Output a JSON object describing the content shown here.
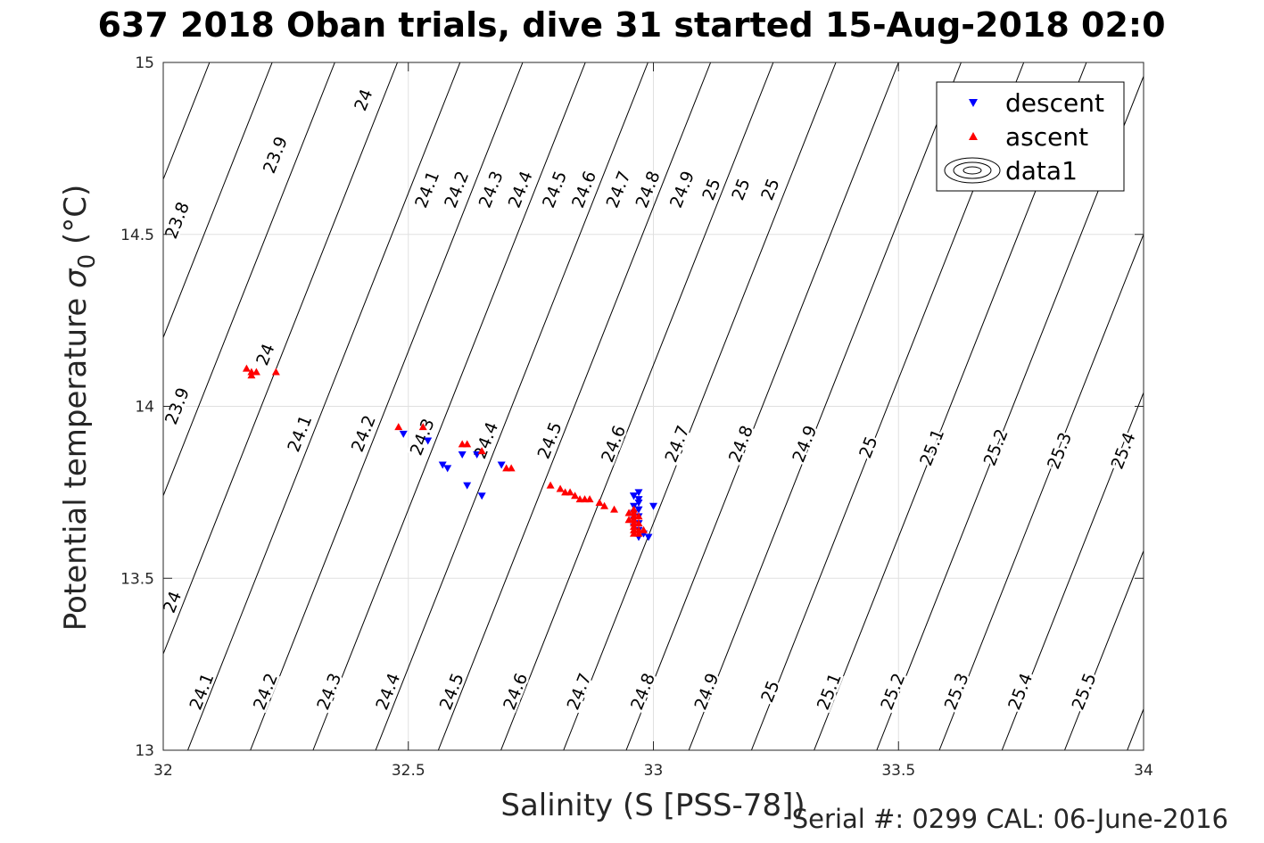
{
  "title": "637 2018 Oban trials, dive 31 started 15-Aug-2018 02:0",
  "footnote": "Serial #: 0299 CAL: 06-June-2016",
  "colors": {
    "descent": "#0000ff",
    "ascent": "#ff0000",
    "contour": "#000000",
    "grid": "#e0e0e0"
  },
  "chart_data": {
    "type": "scatter",
    "xlabel": "Salinity (S [PSS-78])",
    "ylabel_main": "Potential temperature ",
    "ylabel_sigma": "σ",
    "ylabel_sub": "0",
    "ylabel_unit": " (°C)",
    "xlim": [
      32,
      34
    ],
    "ylim": [
      13,
      15
    ],
    "xticks": [
      32,
      32.5,
      33,
      33.5,
      34
    ],
    "xtick_labels": [
      "32",
      "32.5",
      "33",
      "33.5",
      "34"
    ],
    "yticks": [
      13,
      13.5,
      14,
      14.5,
      15
    ],
    "ytick_labels": [
      "13",
      "13.5",
      "14",
      "14.5",
      "15"
    ],
    "grid": true,
    "legend_position": "top-right",
    "legend": [
      "descent",
      "ascent",
      "data1"
    ],
    "series": [
      {
        "name": "descent",
        "marker": "triangle-down",
        "color": "#0000ff",
        "points": [
          [
            32.49,
            13.92
          ],
          [
            32.54,
            13.9
          ],
          [
            32.57,
            13.83
          ],
          [
            32.58,
            13.82
          ],
          [
            32.61,
            13.86
          ],
          [
            32.62,
            13.77
          ],
          [
            32.64,
            13.86
          ],
          [
            32.65,
            13.74
          ],
          [
            32.69,
            13.83
          ],
          [
            32.96,
            13.74
          ],
          [
            32.97,
            13.73
          ],
          [
            32.97,
            13.72
          ],
          [
            32.96,
            13.71
          ],
          [
            32.97,
            13.7
          ],
          [
            32.96,
            13.69
          ],
          [
            32.97,
            13.68
          ],
          [
            32.96,
            13.67
          ],
          [
            32.97,
            13.66
          ],
          [
            32.96,
            13.65
          ],
          [
            32.97,
            13.64
          ],
          [
            32.98,
            13.63
          ],
          [
            32.99,
            13.62
          ],
          [
            33.0,
            13.71
          ],
          [
            32.97,
            13.62
          ],
          [
            32.96,
            13.74
          ],
          [
            32.97,
            13.75
          ]
        ]
      },
      {
        "name": "ascent",
        "marker": "triangle-up",
        "color": "#ff0000",
        "points": [
          [
            32.17,
            14.11
          ],
          [
            32.18,
            14.1
          ],
          [
            32.18,
            14.09
          ],
          [
            32.19,
            14.1
          ],
          [
            32.23,
            14.1
          ],
          [
            32.48,
            13.94
          ],
          [
            32.53,
            13.94
          ],
          [
            32.61,
            13.89
          ],
          [
            32.62,
            13.89
          ],
          [
            32.65,
            13.87
          ],
          [
            32.7,
            13.82
          ],
          [
            32.71,
            13.82
          ],
          [
            32.79,
            13.77
          ],
          [
            32.81,
            13.76
          ],
          [
            32.82,
            13.75
          ],
          [
            32.83,
            13.75
          ],
          [
            32.84,
            13.74
          ],
          [
            32.85,
            13.73
          ],
          [
            32.86,
            13.73
          ],
          [
            32.87,
            13.73
          ],
          [
            32.89,
            13.72
          ],
          [
            32.9,
            13.71
          ],
          [
            32.92,
            13.7
          ],
          [
            32.95,
            13.69
          ],
          [
            32.96,
            13.68
          ],
          [
            32.95,
            13.67
          ],
          [
            32.96,
            13.66
          ],
          [
            32.96,
            13.65
          ],
          [
            32.96,
            13.64
          ],
          [
            32.97,
            13.64
          ],
          [
            32.97,
            13.63
          ],
          [
            32.96,
            13.69
          ],
          [
            32.96,
            13.67
          ],
          [
            32.97,
            13.66
          ],
          [
            32.96,
            13.7
          ],
          [
            32.97,
            13.68
          ],
          [
            32.96,
            13.63
          ],
          [
            32.98,
            13.64
          ]
        ]
      }
    ],
    "contour_levels": [
      23.8,
      23.9,
      24,
      24.1,
      24.2,
      24.3,
      24.4,
      24.5,
      24.6,
      24.7,
      24.8,
      24.9,
      25,
      25.1,
      25.2,
      25.3,
      25.4,
      25.5
    ],
    "contour_labels": [
      {
        "text": "24",
        "x": 32.41,
        "y": 14.89
      },
      {
        "text": "23.9",
        "x": 32.23,
        "y": 14.73
      },
      {
        "text": "23.8",
        "x": 32.03,
        "y": 14.54
      },
      {
        "text": "24.1",
        "x": 32.54,
        "y": 14.63
      },
      {
        "text": "24.2",
        "x": 32.6,
        "y": 14.63
      },
      {
        "text": "24.3",
        "x": 32.67,
        "y": 14.63
      },
      {
        "text": "24.4",
        "x": 32.73,
        "y": 14.63
      },
      {
        "text": "24.5",
        "x": 32.8,
        "y": 14.63
      },
      {
        "text": "24.6",
        "x": 32.86,
        "y": 14.63
      },
      {
        "text": "24.7",
        "x": 32.93,
        "y": 14.63
      },
      {
        "text": "24.8",
        "x": 32.99,
        "y": 14.63
      },
      {
        "text": "24.9",
        "x": 33.06,
        "y": 14.63
      },
      {
        "text": "25",
        "x": 33.12,
        "y": 14.63
      },
      {
        "text": "25",
        "x": 33.18,
        "y": 14.63
      },
      {
        "text": "25",
        "x": 33.24,
        "y": 14.63
      },
      {
        "text": "24",
        "x": 32.21,
        "y": 14.15
      },
      {
        "text": "23.9",
        "x": 32.03,
        "y": 14.0
      },
      {
        "text": "24.1",
        "x": 32.28,
        "y": 13.92
      },
      {
        "text": "24.2",
        "x": 32.41,
        "y": 13.92
      },
      {
        "text": "24.3",
        "x": 32.53,
        "y": 13.91
      },
      {
        "text": "24.4",
        "x": 32.66,
        "y": 13.9
      },
      {
        "text": "24.5",
        "x": 32.79,
        "y": 13.9
      },
      {
        "text": "24.6",
        "x": 32.92,
        "y": 13.89
      },
      {
        "text": "24.7",
        "x": 33.05,
        "y": 13.89
      },
      {
        "text": "24.8",
        "x": 33.18,
        "y": 13.89
      },
      {
        "text": "24.9",
        "x": 33.31,
        "y": 13.89
      },
      {
        "text": "25",
        "x": 33.44,
        "y": 13.88
      },
      {
        "text": "25.1",
        "x": 33.57,
        "y": 13.88
      },
      {
        "text": "25.2",
        "x": 33.7,
        "y": 13.88
      },
      {
        "text": "25.3",
        "x": 33.83,
        "y": 13.87
      },
      {
        "text": "25.4",
        "x": 33.96,
        "y": 13.87
      },
      {
        "text": "24",
        "x": 32.02,
        "y": 13.43
      },
      {
        "text": "24.1",
        "x": 32.08,
        "y": 13.17
      },
      {
        "text": "24.2",
        "x": 32.21,
        "y": 13.17
      },
      {
        "text": "24.3",
        "x": 32.34,
        "y": 13.17
      },
      {
        "text": "24.4",
        "x": 32.46,
        "y": 13.17
      },
      {
        "text": "24.5",
        "x": 32.59,
        "y": 13.17
      },
      {
        "text": "24.6",
        "x": 32.72,
        "y": 13.17
      },
      {
        "text": "24.7",
        "x": 32.85,
        "y": 13.17
      },
      {
        "text": "24.8",
        "x": 32.98,
        "y": 13.17
      },
      {
        "text": "24.9",
        "x": 33.11,
        "y": 13.17
      },
      {
        "text": "25",
        "x": 33.24,
        "y": 13.17
      },
      {
        "text": "25.1",
        "x": 33.36,
        "y": 13.17
      },
      {
        "text": "25.2",
        "x": 33.49,
        "y": 13.17
      },
      {
        "text": "25.3",
        "x": 33.62,
        "y": 13.17
      },
      {
        "text": "25.4",
        "x": 33.75,
        "y": 13.17
      },
      {
        "text": "25.5",
        "x": 33.88,
        "y": 13.17
      }
    ]
  }
}
